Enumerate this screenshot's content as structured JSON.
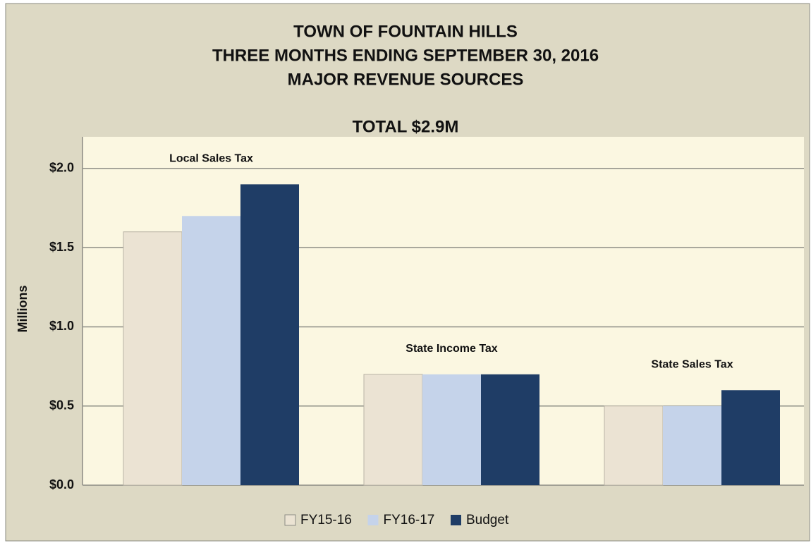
{
  "chart_data": {
    "type": "bar",
    "title": [
      "TOWN OF FOUNTAIN HILLS",
      "THREE MONTHS ENDING SEPTEMBER 30, 2016",
      "MAJOR REVENUE SOURCES",
      "TOTAL $2.9M"
    ],
    "y_label": "Millions",
    "categories": [
      "Local Sales Tax",
      "State Income Tax",
      "State Sales Tax"
    ],
    "series": [
      {
        "name": "FY15-16",
        "color": "#ebe3d3",
        "values": [
          1.6,
          0.7,
          0.5
        ]
      },
      {
        "name": "FY16-17",
        "color": "#c5d3ea",
        "values": [
          1.7,
          0.7,
          0.5
        ]
      },
      {
        "name": "Budget",
        "color": "#1f3d66",
        "values": [
          1.9,
          0.7,
          0.6
        ]
      }
    ],
    "ylim": [
      0,
      2.2
    ],
    "yticks": [
      {
        "value": 0,
        "label": "$0.0"
      },
      {
        "value": 0.5,
        "label": "$0.5"
      },
      {
        "value": 1,
        "label": "$1.0"
      },
      {
        "value": 1.5,
        "label": "$1.5"
      },
      {
        "value": 2,
        "label": "$2.0"
      }
    ],
    "grid": true,
    "legend": "bottom"
  }
}
